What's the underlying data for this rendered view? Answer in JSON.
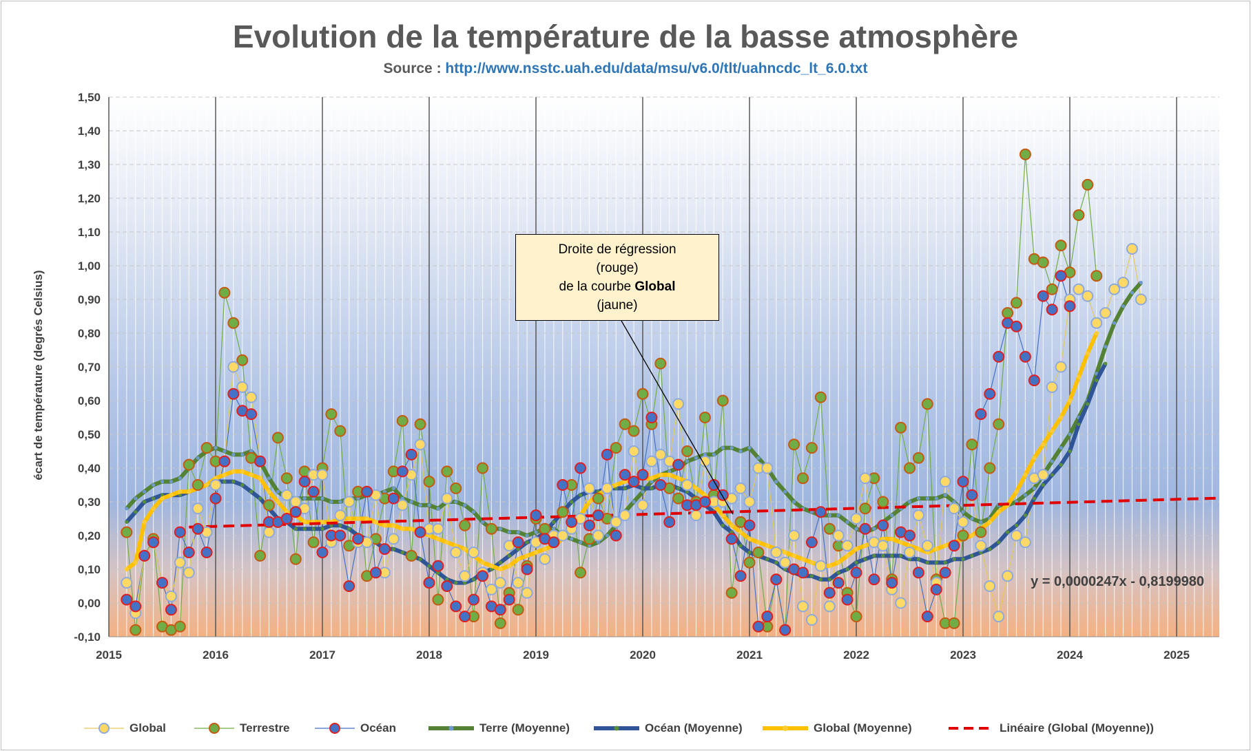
{
  "title": "Evolution de la température de la basse atmosphère",
  "subtitle": {
    "prefix": "Source :",
    "url": "http://www.nsstc.uah.edu/data/msu/v6.0/tlt/uahncdc_lt_6.0.txt"
  },
  "callout": {
    "line1": "Droite de régression",
    "line2": "(rouge)",
    "line3_prefix": "de la courbe",
    "line3_bold": "Global",
    "line4": "(jaune)"
  },
  "equation": "y = 0,0000247x - 0,8199980",
  "colors": {
    "global": "#ffd966",
    "global_border": "#8ea9db",
    "terrestre": "#70ad47",
    "terrestre_border": "#c55a11",
    "ocean": "#4472c4",
    "ocean_border": "#e02020",
    "terre_moy": "#548235",
    "ocean_moy": "#2f5597",
    "global_moy": "#ffc000",
    "lineaire": "#e00000"
  },
  "chart_data": {
    "type": "line",
    "title": "Evolution de la température de la basse atmosphère",
    "xlabel": "",
    "ylabel": "écart de température (degrés Celsius)",
    "xlim": [
      2015,
      2025.4
    ],
    "ylim": [
      -0.1,
      1.5
    ],
    "x_ticks": [
      "2015",
      "2016",
      "2017",
      "2018",
      "2019",
      "2020",
      "2021",
      "2022",
      "2023",
      "2024",
      "2025"
    ],
    "y_ticks": [
      "-0,10",
      "0,00",
      "0,10",
      "0,20",
      "0,30",
      "0,40",
      "0,50",
      "0,60",
      "0,70",
      "0,80",
      "0,90",
      "1,00",
      "1,10",
      "1,20",
      "1,30",
      "1,40",
      "1,50"
    ],
    "start": "2015-03",
    "interval": "monthly",
    "series": [
      {
        "name": "Global",
        "style": "marker",
        "values": [
          0.06,
          -0.03,
          0.14,
          0.18,
          0.06,
          0.02,
          0.12,
          0.09,
          0.28,
          0.21,
          0.35,
          0.42,
          0.7,
          0.64,
          0.61,
          0.42,
          0.21,
          0.24,
          0.32,
          0.3,
          0.28,
          0.38,
          0.38,
          0.18,
          0.26,
          0.3,
          0.18,
          0.18,
          0.32,
          0.09,
          0.19,
          0.29,
          0.38,
          0.47,
          0.22,
          0.22,
          0.31,
          0.15,
          0.08,
          0.15,
          0.09,
          0.04,
          0.06,
          0.17,
          0.06,
          0.03,
          0.18,
          0.13,
          0.2,
          0.2,
          0.22,
          0.25,
          0.34,
          0.2,
          0.34,
          0.24,
          0.26,
          0.45,
          0.29,
          0.42,
          0.44,
          0.42,
          0.59,
          0.35,
          0.26,
          0.42,
          0.3,
          0.3,
          0.31,
          0.34,
          0.3,
          0.4,
          0.4,
          0.15,
          0.12,
          0.2,
          -0.01,
          -0.05,
          0.11,
          -0.01,
          0.2,
          0.17,
          0.25,
          0.37,
          0.18,
          0.17,
          0.04,
          0.0,
          0.15,
          0.26,
          0.17,
          0.06,
          0.36,
          0.28,
          0.24,
          0.32,
          0.17,
          0.05,
          -0.04,
          0.08,
          0.2,
          0.18,
          0.37,
          0.38,
          0.64,
          0.7,
          0.9,
          0.93,
          0.91,
          0.83,
          0.86,
          0.93,
          0.95,
          1.05,
          0.9
        ]
      },
      {
        "name": "Terrestre",
        "style": "marker",
        "values": [
          0.21,
          -0.08,
          0.14,
          0.19,
          -0.07,
          -0.08,
          -0.07,
          0.41,
          0.35,
          0.46,
          0.42,
          0.92,
          0.83,
          0.72,
          0.43,
          0.14,
          0.29,
          0.49,
          0.37,
          0.13,
          0.39,
          0.18,
          0.4,
          0.56,
          0.51,
          0.17,
          0.33,
          0.08,
          0.19,
          0.31,
          0.39,
          0.54,
          0.14,
          0.53,
          0.36,
          0.01,
          0.39,
          0.34,
          0.23,
          -0.04,
          0.4,
          0.22,
          -0.06,
          0.03,
          -0.02,
          0.11,
          0.25,
          0.22,
          0.18,
          0.27,
          0.35,
          0.09,
          0.19,
          0.31,
          0.25,
          0.46,
          0.53,
          0.51,
          0.62,
          0.53,
          0.71,
          0.34,
          0.31,
          0.45,
          0.3,
          0.55,
          0.32,
          0.6,
          0.03,
          0.24,
          0.12,
          0.15,
          -0.07,
          0.07,
          -0.08,
          0.47,
          0.37,
          0.46,
          0.61,
          0.22,
          0.17,
          0.03,
          -0.04,
          0.28,
          0.37,
          0.3,
          0.07,
          0.52,
          0.4,
          0.43,
          0.59,
          0.07,
          -0.06,
          -0.06,
          0.2,
          0.47,
          0.21,
          0.4,
          0.53,
          0.86,
          0.89,
          1.33,
          1.02,
          1.01,
          0.93,
          1.06,
          0.98,
          1.15,
          1.24,
          0.97
        ]
      },
      {
        "name": "Océan",
        "style": "marker",
        "values": [
          0.01,
          -0.01,
          0.14,
          0.18,
          0.06,
          -0.02,
          0.21,
          0.15,
          0.22,
          0.15,
          0.31,
          0.42,
          0.62,
          0.57,
          0.56,
          0.42,
          0.24,
          0.24,
          0.25,
          0.27,
          0.36,
          0.33,
          0.15,
          0.2,
          0.2,
          0.05,
          0.19,
          0.33,
          0.09,
          0.16,
          0.31,
          0.39,
          0.44,
          0.21,
          0.06,
          0.11,
          0.05,
          -0.01,
          -0.04,
          0.01,
          0.08,
          -0.01,
          -0.02,
          0.01,
          0.18,
          0.1,
          0.26,
          0.19,
          0.18,
          0.35,
          0.24,
          0.4,
          0.23,
          0.26,
          0.44,
          0.2,
          0.38,
          0.36,
          0.38,
          0.55,
          0.35,
          0.24,
          0.41,
          0.29,
          0.29,
          0.3,
          0.35,
          0.32,
          0.19,
          0.08,
          0.23,
          -0.07,
          -0.04,
          0.07,
          -0.08,
          0.1,
          0.09,
          0.18,
          0.27,
          0.03,
          0.06,
          0.01,
          0.09,
          0.22,
          0.07,
          0.23,
          0.06,
          0.21,
          0.2,
          0.09,
          -0.04,
          0.04,
          0.09,
          0.17,
          0.36,
          0.32,
          0.56,
          0.62,
          0.73,
          0.83,
          0.82,
          0.73,
          0.66,
          0.91,
          0.87,
          0.97,
          0.88
        ]
      },
      {
        "name": "Terre (Moyenne)",
        "style": "smoothed-line",
        "values": [
          0.28,
          0.31,
          0.33,
          0.35,
          0.36,
          0.36,
          0.37,
          0.4,
          0.43,
          0.45,
          0.46,
          0.45,
          0.44,
          0.44,
          0.45,
          0.42,
          0.37,
          0.33,
          0.31,
          0.31,
          0.31,
          0.31,
          0.31,
          0.3,
          0.3,
          0.31,
          0.31,
          0.32,
          0.32,
          0.33,
          0.34,
          0.31,
          0.3,
          0.29,
          0.29,
          0.28,
          0.3,
          0.3,
          0.29,
          0.27,
          0.24,
          0.22,
          0.22,
          0.21,
          0.21,
          0.2,
          0.21,
          0.22,
          0.22,
          0.2,
          0.19,
          0.18,
          0.17,
          0.18,
          0.2,
          0.23,
          0.27,
          0.3,
          0.33,
          0.36,
          0.38,
          0.39,
          0.4,
          0.42,
          0.43,
          0.44,
          0.44,
          0.46,
          0.46,
          0.45,
          0.46,
          0.43,
          0.4,
          0.36,
          0.33,
          0.3,
          0.28,
          0.27,
          0.26,
          0.26,
          0.26,
          0.24,
          0.22,
          0.21,
          0.22,
          0.24,
          0.26,
          0.28,
          0.3,
          0.31,
          0.31,
          0.31,
          0.32,
          0.3,
          0.27,
          0.25,
          0.24,
          0.25,
          0.29,
          0.29,
          0.3,
          0.32,
          0.34,
          0.38,
          0.42,
          0.46,
          0.5,
          0.55,
          0.6,
          0.68,
          0.76,
          0.83,
          0.88,
          0.92,
          0.95
        ]
      },
      {
        "name": "Océan (Moyenne)",
        "style": "smoothed-line",
        "values": [
          0.24,
          0.27,
          0.3,
          0.31,
          0.32,
          0.32,
          0.32,
          0.33,
          0.34,
          0.35,
          0.36,
          0.36,
          0.36,
          0.35,
          0.33,
          0.31,
          0.28,
          0.25,
          0.24,
          0.22,
          0.22,
          0.22,
          0.22,
          0.23,
          0.23,
          0.22,
          0.2,
          0.19,
          0.18,
          0.16,
          0.16,
          0.15,
          0.14,
          0.13,
          0.11,
          0.09,
          0.07,
          0.06,
          0.06,
          0.07,
          0.09,
          0.1,
          0.12,
          0.14,
          0.16,
          0.18,
          0.19,
          0.21,
          0.24,
          0.27,
          0.3,
          0.32,
          0.33,
          0.33,
          0.34,
          0.34,
          0.34,
          0.35,
          0.34,
          0.34,
          0.35,
          0.35,
          0.34,
          0.33,
          0.31,
          0.29,
          0.27,
          0.23,
          0.21,
          0.17,
          0.15,
          0.14,
          0.13,
          0.12,
          0.1,
          0.09,
          0.08,
          0.08,
          0.07,
          0.07,
          0.09,
          0.1,
          0.12,
          0.13,
          0.14,
          0.14,
          0.14,
          0.14,
          0.13,
          0.13,
          0.12,
          0.12,
          0.12,
          0.13,
          0.13,
          0.14,
          0.15,
          0.16,
          0.18,
          0.21,
          0.23,
          0.26,
          0.31,
          0.35,
          0.38,
          0.41,
          0.45,
          0.53,
          0.59,
          0.66,
          0.71
        ]
      },
      {
        "name": "Global (Moyenne)",
        "style": "smoothed-line",
        "values": [
          0.1,
          0.12,
          0.24,
          0.28,
          0.31,
          0.32,
          0.33,
          0.33,
          0.34,
          0.35,
          0.37,
          0.38,
          0.39,
          0.39,
          0.38,
          0.37,
          0.33,
          0.3,
          0.27,
          0.26,
          0.24,
          0.24,
          0.24,
          0.24,
          0.25,
          0.25,
          0.25,
          0.25,
          0.24,
          0.23,
          0.23,
          0.22,
          0.22,
          0.21,
          0.2,
          0.19,
          0.18,
          0.17,
          0.16,
          0.14,
          0.12,
          0.11,
          0.1,
          0.11,
          0.13,
          0.14,
          0.15,
          0.16,
          0.17,
          0.19,
          0.22,
          0.26,
          0.3,
          0.32,
          0.34,
          0.35,
          0.36,
          0.37,
          0.37,
          0.37,
          0.38,
          0.38,
          0.37,
          0.36,
          0.34,
          0.32,
          0.29,
          0.26,
          0.23,
          0.21,
          0.19,
          0.18,
          0.17,
          0.16,
          0.15,
          0.14,
          0.13,
          0.12,
          0.11,
          0.11,
          0.12,
          0.14,
          0.16,
          0.17,
          0.18,
          0.19,
          0.19,
          0.18,
          0.17,
          0.16,
          0.15,
          0.16,
          0.17,
          0.18,
          0.19,
          0.2,
          0.22,
          0.24,
          0.27,
          0.29,
          0.33,
          0.38,
          0.43,
          0.47,
          0.51,
          0.55,
          0.6,
          0.67,
          0.74,
          0.8
        ]
      },
      {
        "name": "Linéaire (Global (Moyenne))",
        "style": "dashed-line",
        "x": [
          2015.75,
          2025.4
        ],
        "values": [
          0.225,
          0.311
        ]
      }
    ]
  },
  "legend": [
    {
      "key": "global",
      "label": "Global"
    },
    {
      "key": "terrestre",
      "label": "Terrestre"
    },
    {
      "key": "ocean",
      "label": "Océan"
    },
    {
      "key": "terre_moy",
      "label": "Terre (Moyenne)"
    },
    {
      "key": "ocean_moy",
      "label": "Océan (Moyenne)"
    },
    {
      "key": "global_moy",
      "label": "Global (Moyenne)"
    },
    {
      "key": "lineaire",
      "label": "Linéaire (Global (Moyenne))"
    }
  ]
}
